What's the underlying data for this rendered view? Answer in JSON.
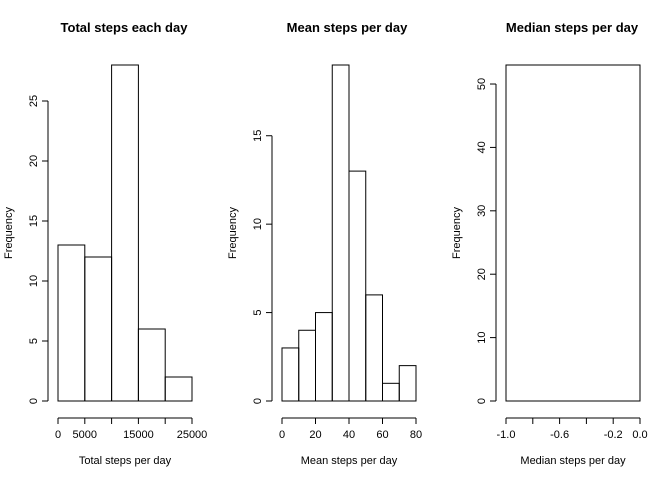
{
  "chart_data": [
    {
      "type": "bar",
      "subtype": "histogram",
      "title": "Total steps each day",
      "xlabel": "Total steps per day",
      "ylabel": "Frequency",
      "bins": [
        {
          "from": 0,
          "to": 5000,
          "value": 13
        },
        {
          "from": 5000,
          "to": 10000,
          "value": 12
        },
        {
          "from": 10000,
          "to": 15000,
          "value": 28
        },
        {
          "from": 15000,
          "to": 20000,
          "value": 6
        },
        {
          "from": 20000,
          "to": 25000,
          "value": 2
        }
      ],
      "xlim": [
        0,
        25000
      ],
      "ylim": [
        0,
        28
      ],
      "xticks": [
        0,
        5000,
        15000,
        25000
      ],
      "xtick_labels": [
        "0",
        "5000",
        "15000",
        "25000"
      ],
      "xtick_positions": [
        0,
        5000,
        10000,
        15000,
        20000,
        25000
      ],
      "yticks": [
        0,
        5,
        10,
        15,
        20,
        25
      ],
      "ytick_labels": [
        "0",
        "5",
        "10",
        "15",
        "20",
        "25"
      ],
      "grid": false
    },
    {
      "type": "bar",
      "subtype": "histogram",
      "title": "Mean steps per day",
      "xlabel": "Mean steps per day",
      "ylabel": "Frequency",
      "bins": [
        {
          "from": 0,
          "to": 10,
          "value": 3
        },
        {
          "from": 10,
          "to": 20,
          "value": 4
        },
        {
          "from": 20,
          "to": 30,
          "value": 5
        },
        {
          "from": 30,
          "to": 40,
          "value": 19
        },
        {
          "from": 40,
          "to": 50,
          "value": 13
        },
        {
          "from": 50,
          "to": 60,
          "value": 6
        },
        {
          "from": 60,
          "to": 70,
          "value": 1
        },
        {
          "from": 70,
          "to": 80,
          "value": 2
        }
      ],
      "xlim": [
        0,
        80
      ],
      "ylim": [
        0,
        19
      ],
      "xticks": [
        0,
        20,
        40,
        60,
        80
      ],
      "xtick_labels": [
        "0",
        "20",
        "40",
        "60",
        "80"
      ],
      "xtick_positions": [
        0,
        20,
        40,
        60,
        80
      ],
      "yticks": [
        0,
        5,
        10,
        15
      ],
      "ytick_labels": [
        "0",
        "5",
        "10",
        "15"
      ],
      "grid": false
    },
    {
      "type": "bar",
      "subtype": "histogram",
      "title": "Median steps per day",
      "xlabel": "Median steps per day",
      "ylabel": "Frequency",
      "bins": [
        {
          "from": -1.0,
          "to": 0.0,
          "value": 53
        }
      ],
      "xlim": [
        -1.0,
        0.0
      ],
      "ylim": [
        0,
        53
      ],
      "xticks": [
        -1.0,
        -0.6,
        -0.2,
        0.0
      ],
      "xtick_labels": [
        "-1.0",
        "-0.6",
        "-0.2",
        "0.0"
      ],
      "xtick_positions": [
        -1.0,
        -0.8,
        -0.6,
        -0.4,
        -0.2,
        0.0
      ],
      "yticks": [
        0,
        10,
        20,
        30,
        40,
        50
      ],
      "ytick_labels": [
        "0",
        "10",
        "20",
        "30",
        "40",
        "50"
      ],
      "grid": false
    }
  ]
}
